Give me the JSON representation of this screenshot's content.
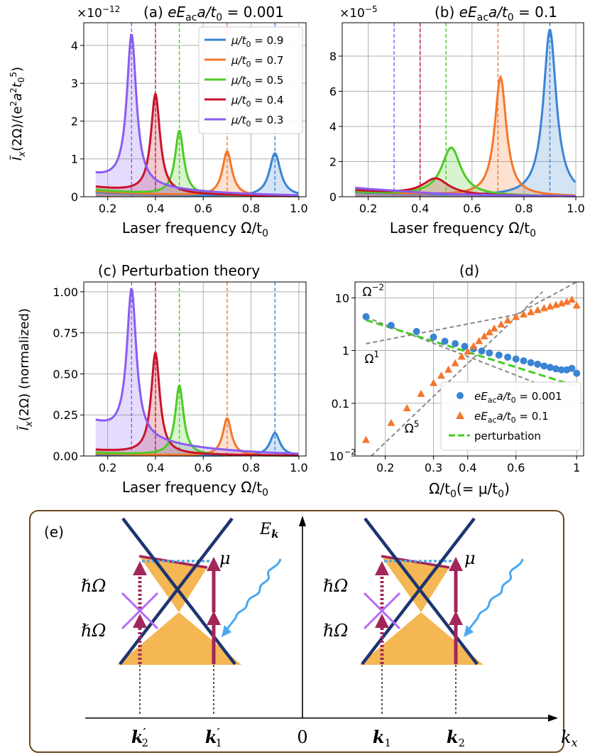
{
  "colors": {
    "mu09": "#3a84d3",
    "mu07": "#f4772c",
    "mu05": "#4ccb25",
    "mu04": "#c8142a",
    "mu03": "#8a5cf0",
    "series_pert": "#44cc22",
    "guide": "#888888",
    "band": "#f4b754",
    "cone": "#1d3470",
    "arrow": "#a3265a",
    "cross": "#b46af7",
    "wave": "#4aa8f0",
    "fermi": "#56a8ea",
    "panel_border": "#6b4a1e"
  },
  "chart_data": [
    {
      "id": "a",
      "type": "line",
      "title": "(a) eE_ac a/t_0 = 0.001",
      "title_prefix": "(a) ",
      "title_math": "eE",
      "title_sub": "ac",
      "title_tail": "a/t",
      "title_tail_sub": "0",
      "title_eq": " = 0.001",
      "scale_label": "×10",
      "scale_exp": "−12",
      "xlabel": "Laser frequency Ω/t",
      "xlabel_sub": "0",
      "ylabel": "Ĩx(2Ω)/(e²a²t0⁵)",
      "ylabel_main": "Ĩ",
      "ylabel_x": "x",
      "ylabel_mid": "(2Ω)/(e",
      "ylabel_two1": "2",
      "ylabel_a": "a",
      "ylabel_two2": "2",
      "ylabel_t": "t",
      "ylabel_zero": "0",
      "ylabel_five": "5",
      "ylabel_end": ")",
      "xlim": [
        0.1,
        1.03
      ],
      "ylim": [
        0,
        4.6
      ],
      "xticks": [
        "0.2",
        "0.4",
        "0.6",
        "0.8",
        "1.0"
      ],
      "xtick_values": [
        0.2,
        0.4,
        0.6,
        0.8,
        1.0
      ],
      "yticks": [
        "0",
        "1",
        "2",
        "3",
        "4"
      ],
      "ytick_values": [
        0,
        1,
        2,
        3,
        4
      ],
      "grid": true,
      "legend": {
        "position": "top-right",
        "entries": [
          "μ/t0 = 0.9",
          "μ/t0 = 0.7",
          "μ/t0 = 0.5",
          "μ/t0 = 0.4",
          "μ/t0 = 0.3"
        ],
        "labels_pre": "μ/t",
        "labels_sub": "0",
        "labels_val": [
          " = 0.9",
          " = 0.7",
          " = 0.5",
          " = 0.4",
          " = 0.3"
        ]
      },
      "series": [
        {
          "name": "μ/t0 = 0.9",
          "mu": 0.9,
          "peak": 1.15,
          "gamma": 0.028,
          "base": 0.12,
          "colorKey": "mu09"
        },
        {
          "name": "μ/t0 = 0.7",
          "mu": 0.7,
          "peak": 1.2,
          "gamma": 0.024,
          "base": 0.15,
          "colorKey": "mu07"
        },
        {
          "name": "μ/t0 = 0.5",
          "mu": 0.5,
          "peak": 1.75,
          "gamma": 0.022,
          "base": 0.18,
          "colorKey": "mu05"
        },
        {
          "name": "μ/t0 = 0.4",
          "mu": 0.4,
          "peak": 2.72,
          "gamma": 0.023,
          "base": 0.25,
          "colorKey": "mu04"
        },
        {
          "name": "μ/t0 = 0.3",
          "mu": 0.3,
          "peak": 4.3,
          "gamma": 0.024,
          "base": 0.55,
          "colorKey": "mu03"
        }
      ]
    },
    {
      "id": "b",
      "type": "line",
      "title_prefix": "(b) ",
      "title_math": "eE",
      "title_sub": "ac",
      "title_tail": "a/t",
      "title_tail_sub": "0",
      "title_eq": " = 0.1",
      "scale_label": "×10",
      "scale_exp": "−5",
      "xlabel": "Laser frequency Ω/t",
      "xlabel_sub": "0",
      "xlim": [
        0.1,
        1.03
      ],
      "ylim": [
        0,
        9.9
      ],
      "xticks": [
        "0.2",
        "0.4",
        "0.6",
        "0.8",
        "1.0"
      ],
      "xtick_values": [
        0.2,
        0.4,
        0.6,
        0.8,
        1.0
      ],
      "yticks": [
        "0",
        "2",
        "4",
        "6",
        "8"
      ],
      "ytick_values": [
        0,
        2,
        4,
        6,
        8
      ],
      "grid": true,
      "series": [
        {
          "name": "μ/t0 = 0.9",
          "mu": 0.9,
          "peak": 9.5,
          "gamma": 0.03,
          "base": 0.25,
          "center": 0.9,
          "colorKey": "mu09"
        },
        {
          "name": "μ/t0 = 0.7",
          "mu": 0.7,
          "peak": 6.8,
          "gamma": 0.027,
          "base": 0.3,
          "center": 0.71,
          "colorKey": "mu07"
        },
        {
          "name": "μ/t0 = 0.5",
          "mu": 0.5,
          "peak": 2.8,
          "gamma": 0.045,
          "base": 0.25,
          "center": 0.52,
          "colorKey": "mu05"
        },
        {
          "name": "μ/t0 = 0.4",
          "mu": 0.4,
          "peak": 1.05,
          "gamma": 0.06,
          "base": 0.35,
          "center": 0.46,
          "colorKey": "mu04"
        },
        {
          "name": "μ/t0 = 0.3",
          "mu": 0.3,
          "peak": 0.35,
          "gamma": 0.1,
          "base": 0.5,
          "center": 0.3,
          "colorKey": "mu03"
        }
      ]
    },
    {
      "id": "c",
      "type": "line",
      "title": "(c) Perturbation theory",
      "xlabel": "Laser frequency Ω/t",
      "xlabel_sub": "0",
      "ylabel_main": "Ĩ",
      "ylabel_x": "x",
      "ylabel_rest": "(2Ω) (normalized)",
      "xlim": [
        0.1,
        1.03
      ],
      "ylim": [
        0,
        1.06
      ],
      "xticks": [
        "0.2",
        "0.4",
        "0.6",
        "0.8",
        "1.0"
      ],
      "xtick_values": [
        0.2,
        0.4,
        0.6,
        0.8,
        1.0
      ],
      "yticks": [
        "0.00",
        "0.25",
        "0.50",
        "0.75",
        "1.00"
      ],
      "ytick_values": [
        0,
        0.25,
        0.5,
        0.75,
        1.0
      ],
      "grid": true,
      "series": [
        {
          "name": "μ/t0 = 0.9",
          "mu": 0.9,
          "peak": 0.14,
          "gamma": 0.025,
          "base": 0.01,
          "colorKey": "mu09"
        },
        {
          "name": "μ/t0 = 0.7",
          "mu": 0.7,
          "peak": 0.23,
          "gamma": 0.022,
          "base": 0.015,
          "colorKey": "mu07"
        },
        {
          "name": "μ/t0 = 0.5",
          "mu": 0.5,
          "peak": 0.43,
          "gamma": 0.021,
          "base": 0.02,
          "colorKey": "mu05"
        },
        {
          "name": "μ/t0 = 0.4",
          "mu": 0.4,
          "peak": 0.63,
          "gamma": 0.022,
          "base": 0.035,
          "colorKey": "mu04"
        },
        {
          "name": "μ/t0 = 0.3",
          "mu": 0.3,
          "peak": 1.02,
          "gamma": 0.024,
          "base": 0.2,
          "colorKey": "mu03"
        }
      ]
    },
    {
      "id": "d",
      "type": "scatter",
      "title": "(d)",
      "xscale": "log",
      "yscale": "log",
      "xlabel": "Ω/t",
      "xlabel_sub": "0",
      "xlabel_rest": "(= μ/t",
      "xlabel_rest_sub": "0",
      "xlabel_end": ")",
      "xlim": [
        0.155,
        1.06
      ],
      "ylim": [
        0.01,
        20
      ],
      "xticks": [
        "0.2",
        "0.3",
        "0.4",
        "0.6",
        "1"
      ],
      "xtick_values": [
        0.2,
        0.3,
        0.4,
        0.6,
        1.0
      ],
      "yticks": [
        "10",
        "1",
        "0.1"
      ],
      "ytick_values": [
        10,
        1,
        0.1
      ],
      "ytick_low": "10",
      "ytick_low_exp": "−2",
      "grid": true,
      "annotations": [
        {
          "text": "Ω",
          "exp": "−2",
          "x": 0.165,
          "y": 11
        },
        {
          "text": "Ω",
          "exp": "1",
          "x": 0.168,
          "y": 0.58
        },
        {
          "text": "Ω",
          "exp": "5",
          "x": 0.235,
          "y": 0.028
        }
      ],
      "legend": {
        "position": "lower-right",
        "entries": [
          {
            "pre": "eE",
            "sub": "ac",
            "mid": "a/t",
            "sub2": "0",
            "val": " = 0.001"
          },
          {
            "pre": "eE",
            "sub": "ac",
            "mid": "a/t",
            "sub2": "0",
            "val": " = 0.1"
          },
          {
            "text": "perturbation"
          }
        ]
      },
      "series": [
        {
          "name": "eE_ac a/t0 = 0.001",
          "marker": "circle",
          "colorKey": "mu09",
          "x": [
            0.17,
            0.21,
            0.26,
            0.3,
            0.33,
            0.36,
            0.39,
            0.42,
            0.45,
            0.48,
            0.52,
            0.56,
            0.6,
            0.64,
            0.68,
            0.72,
            0.76,
            0.8,
            0.84,
            0.88,
            0.92,
            0.96,
            1.0
          ],
          "y": [
            4.4,
            3.0,
            2.3,
            1.8,
            1.5,
            1.35,
            1.2,
            1.08,
            0.98,
            0.9,
            0.82,
            0.75,
            0.69,
            0.64,
            0.59,
            0.55,
            0.51,
            0.48,
            0.45,
            0.43,
            0.43,
            0.46,
            0.37
          ]
        },
        {
          "name": "eE_ac a/t0 = 0.1",
          "marker": "triangle",
          "colorKey": "mu07",
          "x": [
            0.17,
            0.21,
            0.24,
            0.27,
            0.3,
            0.32,
            0.34,
            0.36,
            0.38,
            0.4,
            0.42,
            0.44,
            0.46,
            0.48,
            0.5,
            0.53,
            0.56,
            0.6,
            0.64,
            0.68,
            0.72,
            0.76,
            0.8,
            0.84,
            0.88,
            0.92,
            0.96,
            1.0
          ],
          "y": [
            0.02,
            0.042,
            0.08,
            0.15,
            0.24,
            0.33,
            0.43,
            0.57,
            0.76,
            0.95,
            1.2,
            1.5,
            1.85,
            2.2,
            2.6,
            3.1,
            3.7,
            4.3,
            4.8,
            5.3,
            5.8,
            6.3,
            6.8,
            7.3,
            7.8,
            8.4,
            9.2,
            7.1
          ]
        },
        {
          "name": "perturbation",
          "marker": "dashed",
          "colorKey": "series_pert",
          "x": [
            0.17,
            1.0
          ],
          "y": [
            3.8,
            0.21
          ]
        }
      ],
      "guides": [
        {
          "name": "Ω^-2",
          "x": [
            0.17,
            0.7
          ],
          "y": [
            4.3,
            0.25
          ]
        },
        {
          "name": "Ω^1",
          "x": [
            0.17,
            0.6
          ],
          "y": [
            1.35,
            4.8
          ]
        },
        {
          "name": "Ω^5",
          "x": [
            0.17,
            0.75
          ],
          "y": [
            0.008,
            13
          ]
        },
        {
          "name": "Ω^1 ext",
          "x": [
            0.6,
            1.0
          ],
          "y": [
            4.8,
            20
          ]
        }
      ]
    }
  ],
  "diagram": {
    "label": "(e)",
    "energy_axis": "E",
    "energy_sub": "k",
    "momentum_axis": "k",
    "momentum_sub": "x",
    "origin": "0",
    "mu_label": "μ",
    "photon_label": "ℏΩ",
    "k_labels": [
      {
        "base": "k",
        "sub": "2",
        "prime": "′"
      },
      {
        "base": "k",
        "sub": "1",
        "prime": "′"
      },
      {
        "base": "k",
        "sub": "1",
        "prime": ""
      },
      {
        "base": "k",
        "sub": "2",
        "prime": ""
      }
    ]
  }
}
